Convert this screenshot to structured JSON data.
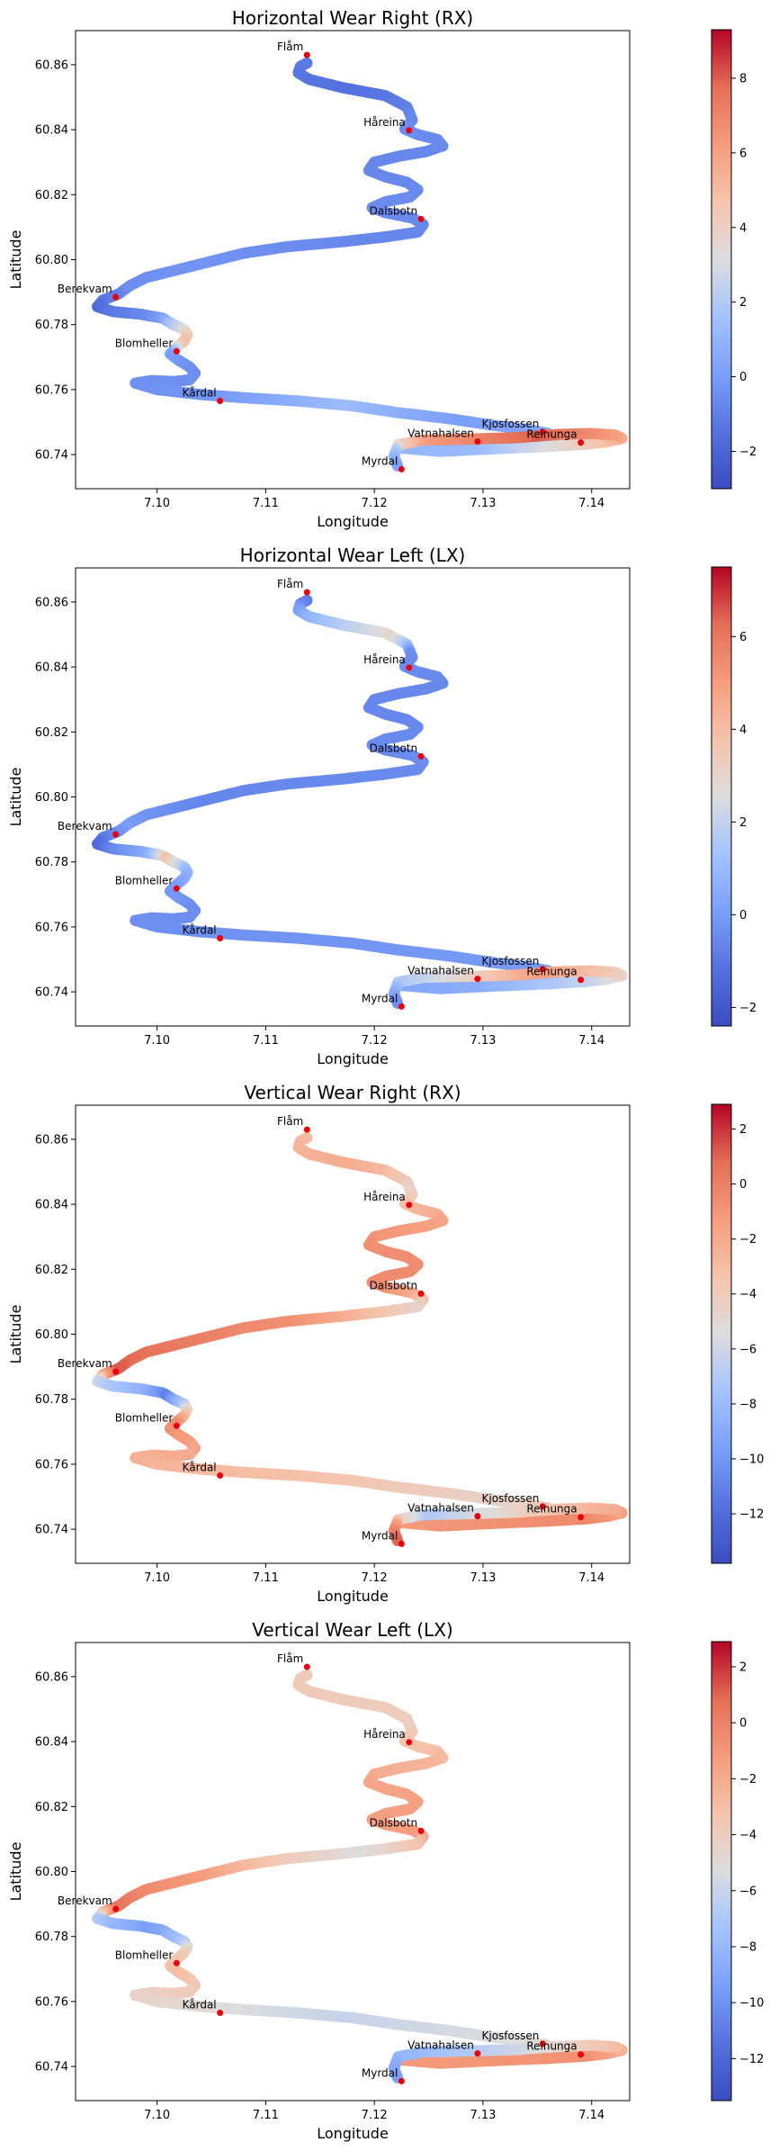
{
  "figure": {
    "background": "#ffffff"
  },
  "chart_data": [
    {
      "type": "scatter",
      "title": "Horizontal Wear Right (RX)",
      "xlabel": "Longitude",
      "ylabel": "Latitude",
      "xlim": [
        7.0925,
        7.1435
      ],
      "ylim": [
        60.7295,
        60.8705
      ],
      "xticks": [
        "7.10",
        "7.11",
        "7.12",
        "7.13",
        "7.14"
      ],
      "yticks": [
        "60.74",
        "60.76",
        "60.78",
        "60.80",
        "60.82",
        "60.84",
        "60.86"
      ],
      "colorbar": {
        "colormap": "coolwarm",
        "min": -3.0,
        "max": 9.3,
        "ticks": [
          "-2",
          "0",
          "2",
          "4",
          "6",
          "8"
        ]
      },
      "track_color_profile": [
        [
          0.0,
          0.15
        ],
        [
          0.05,
          0.12
        ],
        [
          0.12,
          0.2
        ],
        [
          0.2,
          0.18
        ],
        [
          0.27,
          0.2
        ],
        [
          0.33,
          0.18
        ],
        [
          0.4,
          0.22
        ],
        [
          0.45,
          0.2
        ],
        [
          0.48,
          0.1
        ],
        [
          0.5,
          0.2
        ],
        [
          0.51,
          0.3
        ],
        [
          0.53,
          0.55
        ],
        [
          0.55,
          0.65
        ],
        [
          0.57,
          0.25
        ],
        [
          0.6,
          0.2
        ],
        [
          0.66,
          0.22
        ],
        [
          0.7,
          0.35
        ],
        [
          0.74,
          0.25
        ],
        [
          0.8,
          0.3
        ],
        [
          0.85,
          0.35
        ],
        [
          0.88,
          0.6
        ],
        [
          0.92,
          0.9
        ],
        [
          0.95,
          0.75
        ],
        [
          0.97,
          0.4
        ],
        [
          1.0,
          0.25
        ]
      ],
      "stations": [
        {
          "name": "Flåm",
          "lon": 7.1138,
          "lat": 60.863
        },
        {
          "name": "Håreina",
          "lon": 7.1232,
          "lat": 60.8398
        },
        {
          "name": "Dalsbotn",
          "lon": 7.1243,
          "lat": 60.8125
        },
        {
          "name": "Berekvam",
          "lon": 7.0962,
          "lat": 60.7885
        },
        {
          "name": "Blomheller",
          "lon": 7.1018,
          "lat": 60.7718
        },
        {
          "name": "Kårdal",
          "lon": 7.1058,
          "lat": 60.7565
        },
        {
          "name": "Kjosfossen",
          "lon": 7.1355,
          "lat": 60.747
        },
        {
          "name": "Vatnahalsen",
          "lon": 7.1295,
          "lat": 60.744
        },
        {
          "name": "Reinunga",
          "lon": 7.139,
          "lat": 60.7437
        },
        {
          "name": "Myrdal",
          "lon": 7.1225,
          "lat": 60.7355
        }
      ]
    },
    {
      "type": "scatter",
      "title": "Horizontal Wear Left (LX)",
      "xlabel": "Longitude",
      "ylabel": "Latitude",
      "xlim": [
        7.0925,
        7.1435
      ],
      "ylim": [
        60.7295,
        60.8705
      ],
      "xticks": [
        "7.10",
        "7.11",
        "7.12",
        "7.13",
        "7.14"
      ],
      "yticks": [
        "60.74",
        "60.76",
        "60.78",
        "60.80",
        "60.82",
        "60.84",
        "60.86"
      ],
      "colorbar": {
        "colormap": "coolwarm",
        "min": -2.4,
        "max": 7.5,
        "ticks": [
          "-2",
          "0",
          "2",
          "4",
          "6"
        ]
      },
      "track_color_profile": [
        [
          0.0,
          0.15
        ],
        [
          0.07,
          0.55
        ],
        [
          0.1,
          0.2
        ],
        [
          0.2,
          0.18
        ],
        [
          0.3,
          0.2
        ],
        [
          0.4,
          0.18
        ],
        [
          0.45,
          0.25
        ],
        [
          0.48,
          0.1
        ],
        [
          0.5,
          0.3
        ],
        [
          0.51,
          0.65
        ],
        [
          0.53,
          0.35
        ],
        [
          0.56,
          0.25
        ],
        [
          0.6,
          0.2
        ],
        [
          0.7,
          0.22
        ],
        [
          0.8,
          0.25
        ],
        [
          0.85,
          0.3
        ],
        [
          0.88,
          0.45
        ],
        [
          0.92,
          0.75
        ],
        [
          0.95,
          0.45
        ],
        [
          1.0,
          0.2
        ]
      ],
      "stations": [
        {
          "name": "Flåm",
          "lon": 7.1138,
          "lat": 60.863
        },
        {
          "name": "Håreina",
          "lon": 7.1232,
          "lat": 60.8398
        },
        {
          "name": "Dalsbotn",
          "lon": 7.1243,
          "lat": 60.8125
        },
        {
          "name": "Berekvam",
          "lon": 7.0962,
          "lat": 60.7885
        },
        {
          "name": "Blomheller",
          "lon": 7.1018,
          "lat": 60.7718
        },
        {
          "name": "Kårdal",
          "lon": 7.1058,
          "lat": 60.7565
        },
        {
          "name": "Kjosfossen",
          "lon": 7.1355,
          "lat": 60.747
        },
        {
          "name": "Vatnahalsen",
          "lon": 7.1295,
          "lat": 60.744
        },
        {
          "name": "Reinunga",
          "lon": 7.139,
          "lat": 60.7437
        },
        {
          "name": "Myrdal",
          "lon": 7.1225,
          "lat": 60.7355
        }
      ]
    },
    {
      "type": "scatter",
      "title": "Vertical Wear Right (RX)",
      "xlabel": "Longitude",
      "ylabel": "Latitude",
      "xlim": [
        7.0925,
        7.1435
      ],
      "ylim": [
        60.7295,
        60.8705
      ],
      "xticks": [
        "7.10",
        "7.11",
        "7.12",
        "7.13",
        "7.14"
      ],
      "yticks": [
        "60.74",
        "60.76",
        "60.78",
        "60.80",
        "60.82",
        "60.84",
        "60.86"
      ],
      "colorbar": {
        "colormap": "coolwarm",
        "min": -13.8,
        "max": 2.9,
        "ticks": [
          "-12",
          "-10",
          "-8",
          "-6",
          "-4",
          "-2",
          "0",
          "2"
        ]
      },
      "track_color_profile": [
        [
          0.0,
          0.65
        ],
        [
          0.05,
          0.7
        ],
        [
          0.1,
          0.55
        ],
        [
          0.15,
          0.72
        ],
        [
          0.2,
          0.78
        ],
        [
          0.28,
          0.8
        ],
        [
          0.32,
          0.55
        ],
        [
          0.36,
          0.78
        ],
        [
          0.42,
          0.85
        ],
        [
          0.46,
          0.9
        ],
        [
          0.48,
          0.45
        ],
        [
          0.5,
          0.3
        ],
        [
          0.51,
          0.15
        ],
        [
          0.53,
          0.45
        ],
        [
          0.56,
          0.8
        ],
        [
          0.62,
          0.7
        ],
        [
          0.7,
          0.62
        ],
        [
          0.76,
          0.55
        ],
        [
          0.82,
          0.75
        ],
        [
          0.88,
          0.8
        ],
        [
          0.92,
          0.6
        ],
        [
          0.95,
          0.4
        ],
        [
          0.97,
          0.75
        ],
        [
          1.0,
          0.9
        ]
      ],
      "stations": [
        {
          "name": "Flåm",
          "lon": 7.1138,
          "lat": 60.863
        },
        {
          "name": "Håreina",
          "lon": 7.1232,
          "lat": 60.8398
        },
        {
          "name": "Dalsbotn",
          "lon": 7.1243,
          "lat": 60.8125
        },
        {
          "name": "Berekvam",
          "lon": 7.0962,
          "lat": 60.7885
        },
        {
          "name": "Blomheller",
          "lon": 7.1018,
          "lat": 60.7718
        },
        {
          "name": "Kårdal",
          "lon": 7.1058,
          "lat": 60.7565
        },
        {
          "name": "Kjosfossen",
          "lon": 7.1355,
          "lat": 60.747
        },
        {
          "name": "Vatnahalsen",
          "lon": 7.1295,
          "lat": 60.744
        },
        {
          "name": "Reinunga",
          "lon": 7.139,
          "lat": 60.7437
        },
        {
          "name": "Myrdal",
          "lon": 7.1225,
          "lat": 60.7355
        }
      ]
    },
    {
      "type": "scatter",
      "title": "Vertical Wear Left (LX)",
      "xlabel": "Longitude",
      "ylabel": "Latitude",
      "xlim": [
        7.0925,
        7.1435
      ],
      "ylim": [
        60.7295,
        60.8705
      ],
      "xticks": [
        "7.10",
        "7.11",
        "7.12",
        "7.13",
        "7.14"
      ],
      "yticks": [
        "60.74",
        "60.76",
        "60.78",
        "60.80",
        "60.82",
        "60.84",
        "60.86"
      ],
      "colorbar": {
        "colormap": "coolwarm",
        "min": -13.5,
        "max": 2.9,
        "ticks": [
          "-12",
          "-10",
          "-8",
          "-6",
          "-4",
          "-2",
          "0",
          "2"
        ]
      },
      "track_color_profile": [
        [
          0.0,
          0.6
        ],
        [
          0.1,
          0.58
        ],
        [
          0.2,
          0.72
        ],
        [
          0.3,
          0.75
        ],
        [
          0.34,
          0.5
        ],
        [
          0.4,
          0.75
        ],
        [
          0.46,
          0.85
        ],
        [
          0.48,
          0.4
        ],
        [
          0.5,
          0.25
        ],
        [
          0.52,
          0.35
        ],
        [
          0.55,
          0.6
        ],
        [
          0.58,
          0.65
        ],
        [
          0.64,
          0.55
        ],
        [
          0.7,
          0.45
        ],
        [
          0.76,
          0.5
        ],
        [
          0.82,
          0.75
        ],
        [
          0.88,
          0.78
        ],
        [
          0.92,
          0.5
        ],
        [
          0.95,
          0.35
        ],
        [
          1.0,
          0.25
        ]
      ],
      "stations": [
        {
          "name": "Flåm",
          "lon": 7.1138,
          "lat": 60.863
        },
        {
          "name": "Håreina",
          "lon": 7.1232,
          "lat": 60.8398
        },
        {
          "name": "Dalsbotn",
          "lon": 7.1243,
          "lat": 60.8125
        },
        {
          "name": "Berekvam",
          "lon": 7.0962,
          "lat": 60.7885
        },
        {
          "name": "Blomheller",
          "lon": 7.1018,
          "lat": 60.7718
        },
        {
          "name": "Kårdal",
          "lon": 7.1058,
          "lat": 60.7565
        },
        {
          "name": "Kjosfossen",
          "lon": 7.1355,
          "lat": 60.747
        },
        {
          "name": "Vatnahalsen",
          "lon": 7.1295,
          "lat": 60.744
        },
        {
          "name": "Reinunga",
          "lon": 7.139,
          "lat": 60.7437
        },
        {
          "name": "Myrdal",
          "lon": 7.1225,
          "lat": 60.7355
        }
      ]
    }
  ],
  "track": [
    [
      7.1138,
      60.8605
    ],
    [
      7.1132,
      60.8595
    ],
    [
      7.113,
      60.8575
    ],
    [
      7.114,
      60.8555
    ],
    [
      7.117,
      60.853
    ],
    [
      7.121,
      60.8505
    ],
    [
      7.123,
      60.847
    ],
    [
      7.1235,
      60.843
    ],
    [
      7.1228,
      60.8402
    ],
    [
      7.124,
      60.8385
    ],
    [
      7.1258,
      60.837
    ],
    [
      7.1263,
      60.835
    ],
    [
      7.1248,
      60.8333
    ],
    [
      7.1222,
      60.8318
    ],
    [
      7.12,
      60.83
    ],
    [
      7.1195,
      60.8275
    ],
    [
      7.121,
      60.8255
    ],
    [
      7.123,
      60.8238
    ],
    [
      7.124,
      60.8215
    ],
    [
      7.1233,
      60.8193
    ],
    [
      7.121,
      60.8178
    ],
    [
      7.1198,
      60.816
    ],
    [
      7.121,
      60.8145
    ],
    [
      7.1235,
      60.8128
    ],
    [
      7.1245,
      60.8108
    ],
    [
      7.124,
      60.8085
    ],
    [
      7.121,
      60.807
    ],
    [
      7.117,
      60.8055
    ],
    [
      7.112,
      60.804
    ],
    [
      7.108,
      60.802
    ],
    [
      7.105,
      60.7995
    ],
    [
      7.102,
      60.797
    ],
    [
      7.099,
      60.7945
    ],
    [
      7.0975,
      60.792
    ],
    [
      7.0965,
      60.7895
    ],
    [
      7.095,
      60.7875
    ],
    [
      7.0945,
      60.7855
    ],
    [
      7.096,
      60.784
    ],
    [
      7.0985,
      60.7832
    ],
    [
      7.1005,
      60.782
    ],
    [
      7.1015,
      60.78
    ],
    [
      7.1025,
      60.7785
    ],
    [
      7.1028,
      60.7768
    ],
    [
      7.1025,
      60.775
    ],
    [
      7.1018,
      60.773
    ],
    [
      7.1012,
      60.771
    ],
    [
      7.102,
      60.769
    ],
    [
      7.103,
      60.767
    ],
    [
      7.1035,
      60.765
    ],
    [
      7.103,
      60.763
    ],
    [
      7.1015,
      60.7625
    ],
    [
      7.0995,
      60.7628
    ],
    [
      7.098,
      60.762
    ],
    [
      7.1,
      60.76
    ],
    [
      7.104,
      60.7585
    ],
    [
      7.108,
      60.7575
    ],
    [
      7.113,
      60.7565
    ],
    [
      7.118,
      60.755
    ],
    [
      7.122,
      60.753
    ],
    [
      7.127,
      60.751
    ],
    [
      7.131,
      60.749
    ],
    [
      7.134,
      60.7478
    ],
    [
      7.136,
      60.7465
    ],
    [
      7.1365,
      60.745
    ],
    [
      7.133,
      60.7442
    ],
    [
      7.128,
      60.744
    ],
    [
      7.1235,
      60.7435
    ],
    [
      7.1225,
      60.742
    ],
    [
      7.126,
      60.741
    ],
    [
      7.131,
      60.7418
    ],
    [
      7.136,
      60.7425
    ],
    [
      7.1395,
      60.7432
    ],
    [
      7.1415,
      60.744
    ],
    [
      7.1428,
      60.745
    ],
    [
      7.1422,
      60.746
    ],
    [
      7.14,
      60.7465
    ],
    [
      7.137,
      60.7462
    ],
    [
      7.133,
      60.7452
    ],
    [
      7.129,
      60.7448
    ],
    [
      7.1245,
      60.7445
    ],
    [
      7.1222,
      60.743
    ],
    [
      7.1218,
      60.7395
    ],
    [
      7.1222,
      60.736
    ]
  ]
}
